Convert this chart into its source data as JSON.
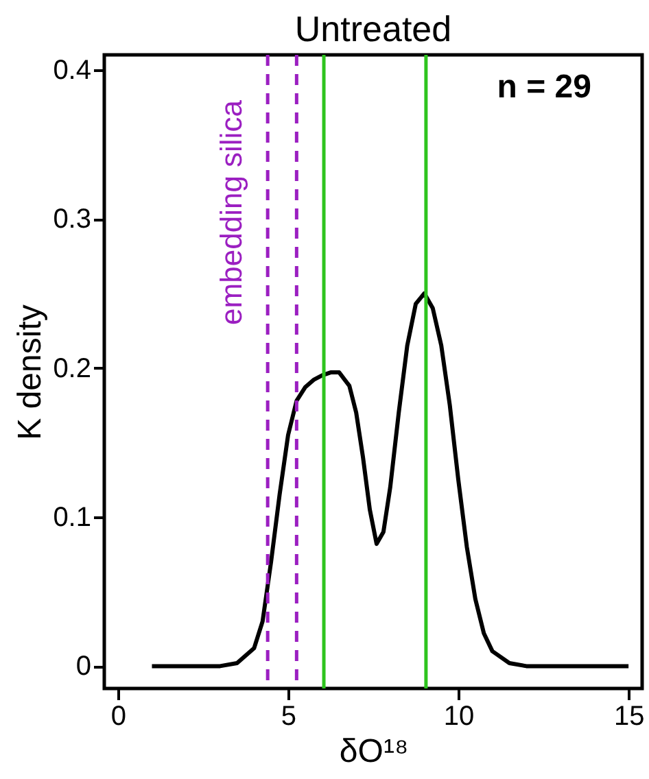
{
  "chart_data": {
    "type": "line",
    "title": "Untreated",
    "xlabel": "δO¹⁸",
    "ylabel": "K density",
    "x": [
      1,
      2,
      3,
      3.5,
      4,
      4.25,
      4.5,
      4.75,
      5,
      5.25,
      5.5,
      5.75,
      6,
      6.25,
      6.5,
      6.8,
      7,
      7.2,
      7.4,
      7.6,
      7.8,
      8,
      8.25,
      8.5,
      8.75,
      9,
      9.25,
      9.5,
      9.75,
      10,
      10.25,
      10.5,
      10.75,
      11,
      11.5,
      12,
      13,
      14,
      15
    ],
    "series": [
      {
        "color": "#000000",
        "values": [
          0,
          0,
          0,
          0.002,
          0.012,
          0.03,
          0.07,
          0.115,
          0.155,
          0.178,
          0.187,
          0.192,
          0.195,
          0.197,
          0.197,
          0.188,
          0.17,
          0.14,
          0.105,
          0.082,
          0.09,
          0.12,
          0.17,
          0.215,
          0.243,
          0.25,
          0.24,
          0.215,
          0.175,
          0.125,
          0.08,
          0.045,
          0.022,
          0.01,
          0.002,
          0,
          0,
          0,
          0
        ]
      }
    ],
    "xlim": [
      -0.4,
      15.4
    ],
    "ylim": [
      -0.015,
      0.41
    ],
    "xticks": [
      0,
      5,
      10,
      15
    ],
    "yticks": [
      0,
      0.1,
      0.2,
      0.3,
      0.4
    ],
    "grid": false,
    "marker": "none",
    "line_style": "solid",
    "ref_lines": [
      {
        "axis": "x",
        "value": 4.4,
        "label": "embedding silica",
        "color": "#9b1fc1",
        "line_style": "dashed"
      },
      {
        "axis": "x",
        "value": 5.25,
        "color": "#9b1fc1",
        "line_style": "dashed"
      },
      {
        "axis": "x",
        "value": 6.05,
        "color": "#2ec41e",
        "line_style": "solid"
      },
      {
        "axis": "x",
        "value": 9.05,
        "color": "#2ec41e",
        "line_style": "solid"
      }
    ],
    "annotations": [
      "n = 29"
    ]
  }
}
